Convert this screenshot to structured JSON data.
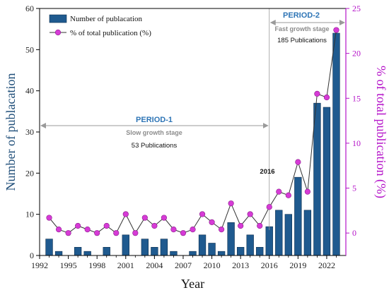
{
  "chart_data": {
    "type": "bar+line",
    "xlabel": "Year",
    "ylabel_left": "Number of publacation",
    "ylabel_right": "% of total publication (%)",
    "xlim": [
      1992,
      2024
    ],
    "xticks": [
      1992,
      1995,
      1998,
      2001,
      2004,
      2007,
      2010,
      2013,
      2016,
      2019,
      2022
    ],
    "ylim_left": [
      0,
      60
    ],
    "yticks_left": [
      0,
      10,
      20,
      30,
      40,
      50,
      60
    ],
    "ylim_right": [
      -2.5,
      25
    ],
    "yticks_right": [
      0,
      5,
      10,
      15,
      20,
      25
    ],
    "colors": {
      "bars": "#1f5a8f",
      "line": "#333333",
      "markers": "#d63bd6",
      "right_axis": "#b514c9",
      "period_text": "#2e75b6",
      "guide": "#9a9a9a"
    },
    "series": [
      {
        "name": "Number of publacation",
        "kind": "bar",
        "x": [
          1993,
          1994,
          1995,
          1996,
          1997,
          1998,
          1999,
          2000,
          2001,
          2002,
          2003,
          2004,
          2005,
          2006,
          2007,
          2008,
          2009,
          2010,
          2011,
          2012,
          2013,
          2014,
          2015,
          2016,
          2017,
          2018,
          2019,
          2020,
          2021,
          2022,
          2023
        ],
        "values": [
          4,
          1,
          0,
          2,
          1,
          0,
          2,
          0,
          5,
          0,
          4,
          2,
          4,
          1,
          0,
          1,
          5,
          3,
          1,
          8,
          2,
          5,
          2,
          7,
          11,
          10,
          19,
          11,
          37,
          36,
          54
        ]
      },
      {
        "name": "% of total publication (%)",
        "kind": "line",
        "axis": "right",
        "x": [
          1993,
          1994,
          1995,
          1996,
          1997,
          1998,
          1999,
          2000,
          2001,
          2002,
          2003,
          2004,
          2005,
          2006,
          2007,
          2008,
          2009,
          2010,
          2011,
          2012,
          2013,
          2014,
          2015,
          2016,
          2017,
          2018,
          2019,
          2020,
          2021,
          2022,
          2023
        ],
        "values": [
          1.7,
          0.4,
          0.0,
          0.8,
          0.4,
          0.0,
          0.8,
          0.0,
          2.1,
          0.0,
          1.7,
          0.8,
          1.7,
          0.4,
          0.0,
          0.4,
          2.1,
          1.2,
          0.4,
          3.3,
          0.8,
          2.1,
          0.8,
          2.9,
          4.6,
          4.2,
          7.9,
          4.6,
          15.5,
          15.1,
          22.6
        ]
      }
    ],
    "annotations": {
      "period1_label": "PERIOD-1",
      "period1_stage": "Slow growth stage",
      "period1_pubs": "53 Publications",
      "period2_label": "PERIOD-2",
      "period2_stage": "Fast growth stage",
      "period2_pubs": "185 Publications",
      "divider_label": "2016",
      "divider_year": 2016,
      "period1_span": [
        1992,
        2016
      ],
      "period2_span": [
        2016,
        2024
      ]
    },
    "legend": {
      "bar_label": "Number of publacation",
      "line_label": "% of total publication (%)",
      "placement": "top-left"
    }
  }
}
